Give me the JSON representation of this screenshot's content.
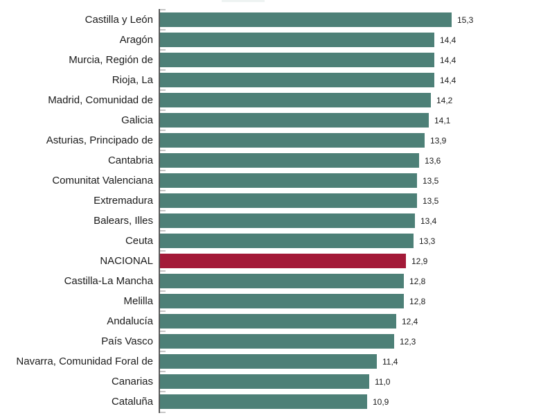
{
  "chart_data": {
    "type": "bar",
    "orientation": "horizontal",
    "title": "",
    "xlabel": "",
    "ylabel": "",
    "xlim": [
      0,
      15.3
    ],
    "grid": false,
    "legend": false,
    "decimal_separator": ",",
    "bar_color": "#4d8077",
    "highlight_bar_color": "#a31a38",
    "highlight_category": "NACIONAL",
    "axis_color": "#595959",
    "tick_color": "#c6c6c6",
    "series": [
      {
        "label": "Castilla y León",
        "value": 15.3,
        "display": "15,3",
        "highlight": false
      },
      {
        "label": "Aragón",
        "value": 14.4,
        "display": "14,4",
        "highlight": false
      },
      {
        "label": "Murcia, Región de",
        "value": 14.4,
        "display": "14,4",
        "highlight": false
      },
      {
        "label": "Rioja, La",
        "value": 14.4,
        "display": "14,4",
        "highlight": false
      },
      {
        "label": "Madrid, Comunidad de",
        "value": 14.2,
        "display": "14,2",
        "highlight": false
      },
      {
        "label": "Galicia",
        "value": 14.1,
        "display": "14,1",
        "highlight": false
      },
      {
        "label": "Asturias, Principado de",
        "value": 13.9,
        "display": "13,9",
        "highlight": false
      },
      {
        "label": "Cantabria",
        "value": 13.6,
        "display": "13,6",
        "highlight": false
      },
      {
        "label": "Comunitat Valenciana",
        "value": 13.5,
        "display": "13,5",
        "highlight": false
      },
      {
        "label": "Extremadura",
        "value": 13.5,
        "display": "13,5",
        "highlight": false
      },
      {
        "label": "Balears, Illes",
        "value": 13.4,
        "display": "13,4",
        "highlight": false
      },
      {
        "label": "Ceuta",
        "value": 13.3,
        "display": "13,3",
        "highlight": false
      },
      {
        "label": "NACIONAL",
        "value": 12.9,
        "display": "12,9",
        "highlight": true
      },
      {
        "label": "Castilla-La Mancha",
        "value": 12.8,
        "display": "12,8",
        "highlight": false
      },
      {
        "label": "Melilla",
        "value": 12.8,
        "display": "12,8",
        "highlight": false
      },
      {
        "label": "Andalucía",
        "value": 12.4,
        "display": "12,4",
        "highlight": false
      },
      {
        "label": "País Vasco",
        "value": 12.3,
        "display": "12,3",
        "highlight": false
      },
      {
        "label": "Navarra, Comunidad Foral de",
        "value": 11.4,
        "display": "11,4",
        "highlight": false
      },
      {
        "label": "Canarias",
        "value": 11.0,
        "display": "11,0",
        "highlight": false
      },
      {
        "label": "Cataluña",
        "value": 10.9,
        "display": "10,9",
        "highlight": false
      }
    ]
  }
}
